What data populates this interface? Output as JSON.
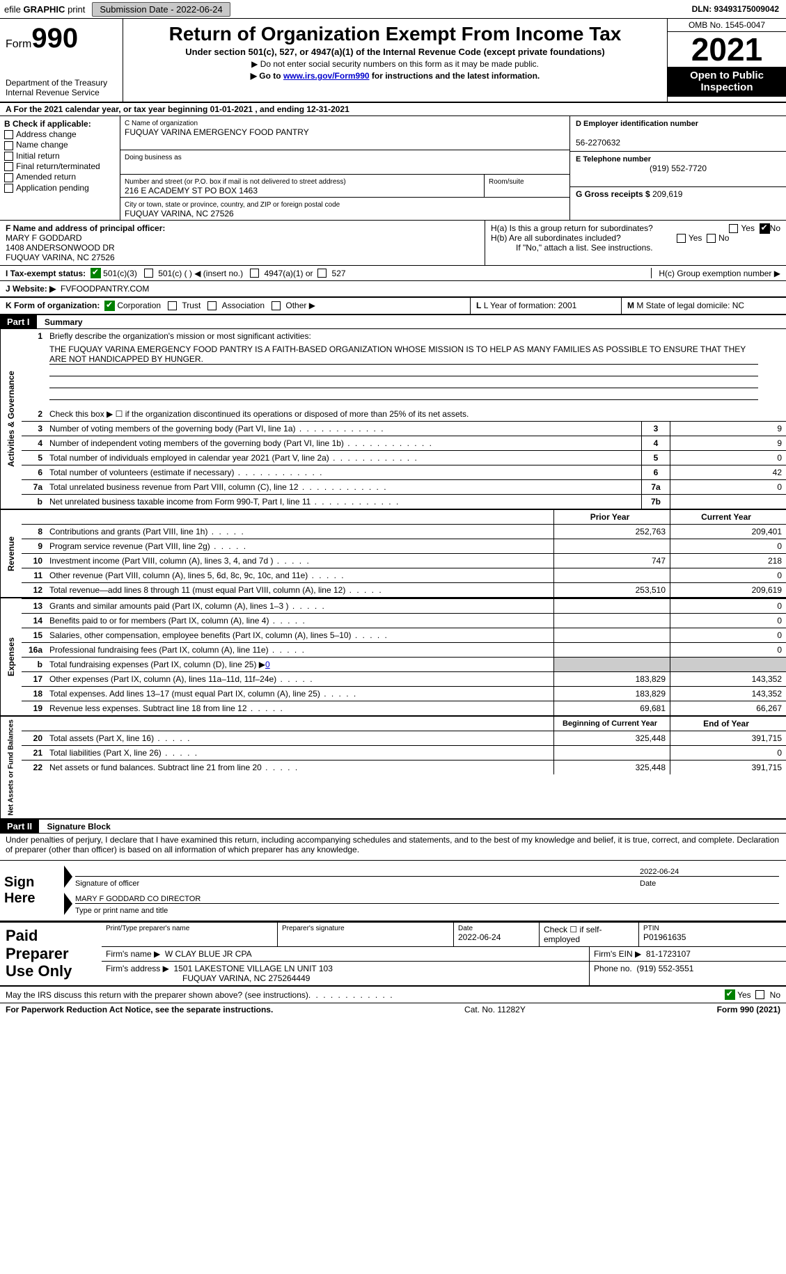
{
  "topbar": {
    "efile_prefix": "efile",
    "efile_graphic": "GRAPHIC",
    "print": "print",
    "submission_label": "Submission Date - 2022-06-24",
    "dln": "DLN: 93493175009042"
  },
  "header": {
    "form_label": "Form",
    "form_number": "990",
    "dept": "Department of the Treasury",
    "irs": "Internal Revenue Service",
    "title": "Return of Organization Exempt From Income Tax",
    "subtitle": "Under section 501(c), 527, or 4947(a)(1) of the Internal Revenue Code (except private foundations)",
    "note1": "▶ Do not enter social security numbers on this form as it may be made public.",
    "note2_prefix": "▶ Go to ",
    "note2_link": "www.irs.gov/Form990",
    "note2_suffix": " for instructions and the latest information.",
    "omb": "OMB No. 1545-0047",
    "year": "2021",
    "open": "Open to Public Inspection"
  },
  "rowA": "A For the 2021 calendar year, or tax year beginning 01-01-2021   , and ending 12-31-2021",
  "colB": {
    "header": "B Check if applicable:",
    "opts": [
      "Address change",
      "Name change",
      "Initial return",
      "Final return/terminated",
      "Amended return",
      "Application pending"
    ]
  },
  "colC": {
    "name_lbl": "C Name of organization",
    "name": "FUQUAY VARINA EMERGENCY FOOD PANTRY",
    "dba_lbl": "Doing business as",
    "dba": "",
    "addr_lbl": "Number and street (or P.O. box if mail is not delivered to street address)",
    "room_lbl": "Room/suite",
    "addr": "216 E ACADEMY ST PO BOX 1463",
    "city_lbl": "City or town, state or province, country, and ZIP or foreign postal code",
    "city": "FUQUAY VARINA, NC  27526"
  },
  "colD": {
    "d_lbl": "D Employer identification number",
    "ein": "56-2270632",
    "e_lbl": "E Telephone number",
    "phone": "(919) 552-7720",
    "g_lbl": "G Gross receipts $",
    "gross": "209,619"
  },
  "rowF": {
    "f_lbl": "F Name and address of principal officer:",
    "name": "MARY F GODDARD",
    "addr1": "1408 ANDERSONWOOD DR",
    "addr2": "FUQUAY VARINA, NC  27526"
  },
  "rowH": {
    "ha": "H(a)  Is this a group return for subordinates?",
    "hb": "H(b)  Are all subordinates included?",
    "hb_note": "If \"No,\" attach a list. See instructions.",
    "hc": "H(c)  Group exemption number ▶"
  },
  "rowI": {
    "label": "I  Tax-exempt status:",
    "opt1": "501(c)(3)",
    "opt2": "501(c) (  ) ◀ (insert no.)",
    "opt3": "4947(a)(1) or",
    "opt4": "527"
  },
  "rowJ": {
    "label": "J  Website: ▶",
    "val": "FVFOODPANTRY.COM"
  },
  "rowK": {
    "k_lbl": "K Form of organization:",
    "corp": "Corporation",
    "trust": "Trust",
    "assoc": "Association",
    "other": "Other ▶",
    "l": "L Year of formation: 2001",
    "m": "M State of legal domicile: NC"
  },
  "parts": {
    "p1_hdr": "Part I",
    "p1_title": "Summary",
    "p2_hdr": "Part II",
    "p2_title": "Signature Block"
  },
  "side": {
    "ag": "Activities & Governance",
    "rev": "Revenue",
    "exp": "Expenses",
    "net": "Net Assets or Fund Balances"
  },
  "p1": {
    "line1": "Briefly describe the organization's mission or most significant activities:",
    "mission": "THE FUQUAY VARINA EMERGENCY FOOD PANTRY IS A FAITH-BASED ORGANIZATION WHOSE MISSION IS TO HELP AS MANY FAMILIES AS POSSIBLE TO ENSURE THAT THEY ARE NOT HANDICAPPED BY HUNGER.",
    "line2": "Check this box ▶ ☐  if the organization discontinued its operations or disposed of more than 25% of its net assets.",
    "lines_small": [
      {
        "n": "3",
        "d": "Number of voting members of the governing body (Part VI, line 1a)",
        "box": "3",
        "v": "9"
      },
      {
        "n": "4",
        "d": "Number of independent voting members of the governing body (Part VI, line 1b)",
        "box": "4",
        "v": "9"
      },
      {
        "n": "5",
        "d": "Total number of individuals employed in calendar year 2021 (Part V, line 2a)",
        "box": "5",
        "v": "0"
      },
      {
        "n": "6",
        "d": "Total number of volunteers (estimate if necessary)",
        "box": "6",
        "v": "42"
      },
      {
        "n": "7a",
        "d": "Total unrelated business revenue from Part VIII, column (C), line 12",
        "box": "7a",
        "v": "0"
      },
      {
        "n": "b",
        "d": "Net unrelated business taxable income from Form 990-T, Part I, line 11",
        "box": "7b",
        "v": ""
      }
    ],
    "col_prior": "Prior Year",
    "col_curr": "Current Year",
    "rev": [
      {
        "n": "8",
        "d": "Contributions and grants (Part VIII, line 1h)",
        "p": "252,763",
        "c": "209,401"
      },
      {
        "n": "9",
        "d": "Program service revenue (Part VIII, line 2g)",
        "p": "",
        "c": "0"
      },
      {
        "n": "10",
        "d": "Investment income (Part VIII, column (A), lines 3, 4, and 7d )",
        "p": "747",
        "c": "218"
      },
      {
        "n": "11",
        "d": "Other revenue (Part VIII, column (A), lines 5, 6d, 8c, 9c, 10c, and 11e)",
        "p": "",
        "c": "0"
      },
      {
        "n": "12",
        "d": "Total revenue—add lines 8 through 11 (must equal Part VIII, column (A), line 12)",
        "p": "253,510",
        "c": "209,619"
      }
    ],
    "exp": [
      {
        "n": "13",
        "d": "Grants and similar amounts paid (Part IX, column (A), lines 1–3 )",
        "p": "",
        "c": "0"
      },
      {
        "n": "14",
        "d": "Benefits paid to or for members (Part IX, column (A), line 4)",
        "p": "",
        "c": "0"
      },
      {
        "n": "15",
        "d": "Salaries, other compensation, employee benefits (Part IX, column (A), lines 5–10)",
        "p": "",
        "c": "0"
      },
      {
        "n": "16a",
        "d": "Professional fundraising fees (Part IX, column (A), line 11e)",
        "p": "",
        "c": "0"
      }
    ],
    "exp_b": {
      "n": "b",
      "d": "Total fundraising expenses (Part IX, column (D), line 25) ▶",
      "v": "0"
    },
    "exp2": [
      {
        "n": "17",
        "d": "Other expenses (Part IX, column (A), lines 11a–11d, 11f–24e)",
        "p": "183,829",
        "c": "143,352"
      },
      {
        "n": "18",
        "d": "Total expenses. Add lines 13–17 (must equal Part IX, column (A), line 25)",
        "p": "183,829",
        "c": "143,352"
      },
      {
        "n": "19",
        "d": "Revenue less expenses. Subtract line 18 from line 12",
        "p": "69,681",
        "c": "66,267"
      }
    ],
    "col_boy": "Beginning of Current Year",
    "col_eoy": "End of Year",
    "net": [
      {
        "n": "20",
        "d": "Total assets (Part X, line 16)",
        "p": "325,448",
        "c": "391,715"
      },
      {
        "n": "21",
        "d": "Total liabilities (Part X, line 26)",
        "p": "",
        "c": "0"
      },
      {
        "n": "22",
        "d": "Net assets or fund balances. Subtract line 21 from line 20",
        "p": "325,448",
        "c": "391,715"
      }
    ]
  },
  "p2": {
    "decl": "Under penalties of perjury, I declare that I have examined this return, including accompanying schedules and statements, and to the best of my knowledge and belief, it is true, correct, and complete. Declaration of preparer (other than officer) is based on all information of which preparer has any knowledge.",
    "sign_here": "Sign Here",
    "sig_lbl": "Signature of officer",
    "date_lbl": "Date",
    "date": "2022-06-24",
    "name": "MARY F GODDARD  CO DIRECTOR",
    "name_lbl": "Type or print name and title"
  },
  "prep": {
    "title": "Paid Preparer Use Only",
    "r1": {
      "c1_lbl": "Print/Type preparer's name",
      "c1": "",
      "c2_lbl": "Preparer's signature",
      "c2": "",
      "c3_lbl": "Date",
      "c3": "2022-06-24",
      "c4_lbl": "Check ☐ if self-employed",
      "c5_lbl": "PTIN",
      "c5": "P01961635"
    },
    "r2": {
      "lbl": "Firm's name      ▶",
      "v": "W CLAY BLUE JR CPA",
      "ein_lbl": "Firm's EIN ▶",
      "ein": "81-1723107"
    },
    "r3": {
      "lbl": "Firm's address ▶",
      "v1": "1501 LAKESTONE VILLAGE LN UNIT 103",
      "v2": "FUQUAY VARINA, NC  275264449",
      "ph_lbl": "Phone no.",
      "ph": "(919) 552-3551"
    }
  },
  "footer": {
    "q": "May the IRS discuss this return with the preparer shown above? (see instructions)",
    "paperwork": "For Paperwork Reduction Act Notice, see the separate instructions.",
    "cat": "Cat. No. 11282Y",
    "form": "Form 990 (2021)"
  },
  "yesno": {
    "yes": "Yes",
    "no": "No"
  }
}
